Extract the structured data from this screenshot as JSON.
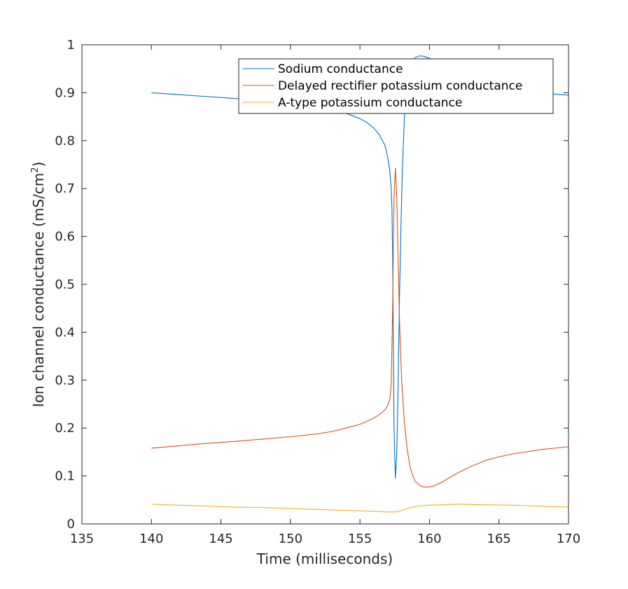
{
  "chart_data": {
    "type": "line",
    "title": "",
    "xlabel": "Time (milliseconds)",
    "ylabel_main": "Ion channel conductance (mS/cm",
    "ylabel_sup": "2",
    "ylabel_close": ")",
    "xlim": [
      135,
      170
    ],
    "ylim": [
      0,
      1
    ],
    "xticks": [
      135,
      140,
      145,
      150,
      155,
      160,
      165,
      170
    ],
    "yticks": [
      0,
      0.1,
      0.2,
      0.3,
      0.4,
      0.5,
      0.6,
      0.7,
      0.8,
      0.9,
      1
    ],
    "xtick_labels": [
      "135",
      "140",
      "145",
      "150",
      "155",
      "160",
      "165",
      "170"
    ],
    "ytick_labels": [
      "0",
      "0.1",
      "0.2",
      "0.3",
      "0.4",
      "0.5",
      "0.6",
      "0.7",
      "0.8",
      "0.9",
      "1"
    ],
    "grid": false,
    "legend_position": "top-right",
    "series": [
      {
        "name": "Sodium conductance",
        "color": "#0072BD",
        "x": [
          140,
          142,
          144,
          146,
          148,
          150,
          152,
          153,
          154,
          155,
          155.5,
          156,
          156.4,
          156.8,
          157.0,
          157.15,
          157.25,
          157.3,
          157.35,
          157.45,
          157.55,
          157.65,
          157.75,
          157.85,
          157.95,
          158.05,
          158.2,
          158.4,
          158.6,
          158.8,
          159.0,
          159.3,
          159.6,
          160.0,
          160.5,
          161,
          162,
          164,
          166,
          168,
          170
        ],
        "y": [
          0.9,
          0.896,
          0.892,
          0.888,
          0.884,
          0.878,
          0.87,
          0.864,
          0.857,
          0.846,
          0.838,
          0.826,
          0.812,
          0.79,
          0.765,
          0.735,
          0.7,
          0.66,
          0.56,
          0.2,
          0.095,
          0.15,
          0.3,
          0.48,
          0.62,
          0.74,
          0.85,
          0.92,
          0.953,
          0.968,
          0.974,
          0.977,
          0.976,
          0.972,
          0.963,
          0.952,
          0.935,
          0.917,
          0.906,
          0.899,
          0.895
        ]
      },
      {
        "name": "Delayed rectifier potassium conductance",
        "color": "#D95319",
        "x": [
          140,
          142,
          144,
          146,
          148,
          150,
          152,
          153,
          154,
          155,
          155.5,
          156,
          156.4,
          156.8,
          157.0,
          157.15,
          157.25,
          157.35,
          157.45,
          157.55,
          157.65,
          157.75,
          157.85,
          158.0,
          158.2,
          158.4,
          158.6,
          158.8,
          159.0,
          159.3,
          159.6,
          160.0,
          160.3,
          160.6,
          161,
          162,
          163,
          164,
          165,
          166,
          168,
          170
        ],
        "y": [
          0.158,
          0.163,
          0.168,
          0.172,
          0.177,
          0.182,
          0.188,
          0.193,
          0.2,
          0.208,
          0.214,
          0.221,
          0.228,
          0.238,
          0.247,
          0.26,
          0.29,
          0.45,
          0.68,
          0.742,
          0.68,
          0.55,
          0.42,
          0.3,
          0.21,
          0.155,
          0.12,
          0.1,
          0.088,
          0.08,
          0.077,
          0.077,
          0.079,
          0.083,
          0.089,
          0.106,
          0.12,
          0.132,
          0.14,
          0.146,
          0.155,
          0.161
        ]
      },
      {
        "name": "A-type potassium conductance",
        "color": "#EDB120",
        "x": [
          140,
          142,
          144,
          146,
          148,
          150,
          152,
          154,
          155,
          156,
          157,
          157.6,
          158,
          158.5,
          159,
          159.5,
          160,
          161,
          162,
          164,
          166,
          168,
          170
        ],
        "y": [
          0.041,
          0.039,
          0.037,
          0.035,
          0.034,
          0.032,
          0.03,
          0.028,
          0.027,
          0.026,
          0.025,
          0.025,
          0.028,
          0.033,
          0.036,
          0.038,
          0.039,
          0.04,
          0.041,
          0.04,
          0.039,
          0.037,
          0.035
        ]
      }
    ]
  }
}
